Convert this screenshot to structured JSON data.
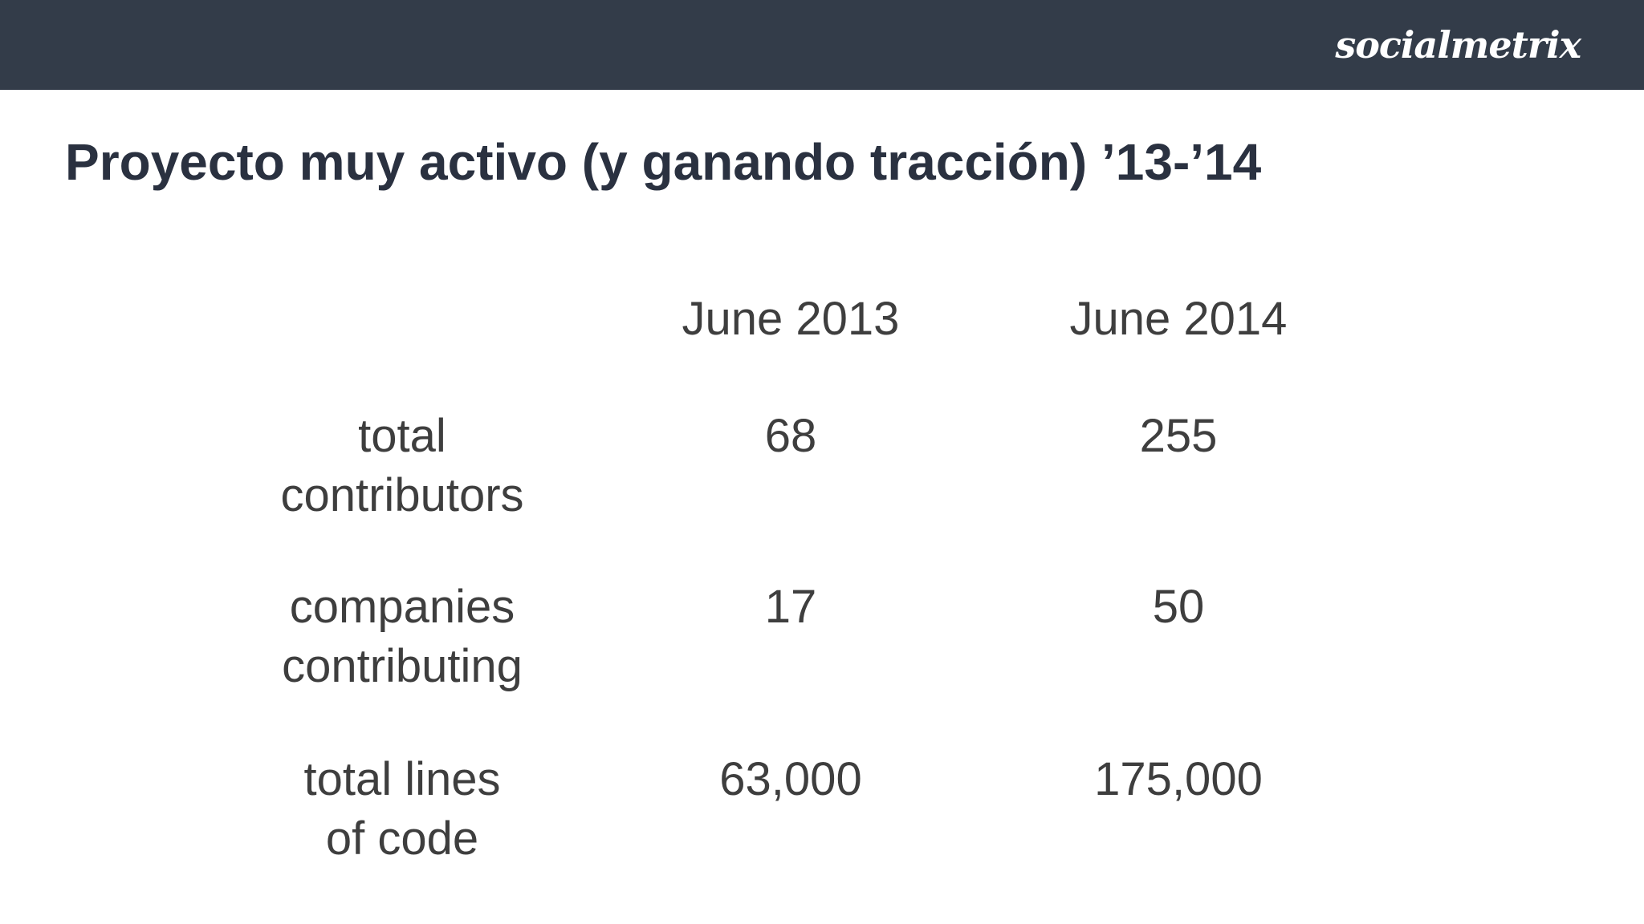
{
  "header": {
    "logo_text": "socialmetrix"
  },
  "slide": {
    "title": "Proyecto muy activo (y ganando tracción) ’13-’14"
  },
  "table": {
    "columns": [
      "June 2013",
      "June 2014"
    ],
    "rows": [
      {
        "label": "total\ncontributors",
        "values": [
          "68",
          "255"
        ]
      },
      {
        "label": "companies\ncontributing",
        "values": [
          "17",
          "50"
        ]
      },
      {
        "label": "total lines\nof code",
        "values": [
          "63,000",
          "175,000"
        ]
      }
    ]
  },
  "colors": {
    "header_background": "#333c49",
    "title_text": "#2a3140",
    "table_text": "#3e3e3e"
  }
}
